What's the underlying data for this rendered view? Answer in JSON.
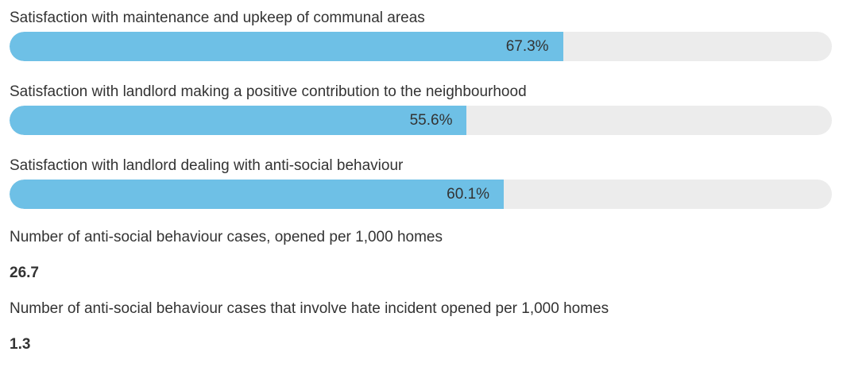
{
  "bars": [
    {
      "label": "Satisfaction with maintenance and upkeep of communal areas",
      "value_text": "67.3%",
      "value": 67.3
    },
    {
      "label": "Satisfaction with landlord making a positive contribution to the neighbourhood",
      "value_text": "55.6%",
      "value": 55.6
    },
    {
      "label": "Satisfaction with landlord dealing with anti-social behaviour",
      "value_text": "60.1%",
      "value": 60.1
    }
  ],
  "metrics": [
    {
      "label": "Number of anti-social behaviour cases, opened per 1,000 homes",
      "value": "26.7"
    },
    {
      "label": "Number of anti-social behaviour cases that involve hate incident opened per 1,000 homes",
      "value": "1.3"
    }
  ],
  "colors": {
    "fill": "#6ec0e6",
    "track": "#ececec",
    "text": "#333333"
  }
}
